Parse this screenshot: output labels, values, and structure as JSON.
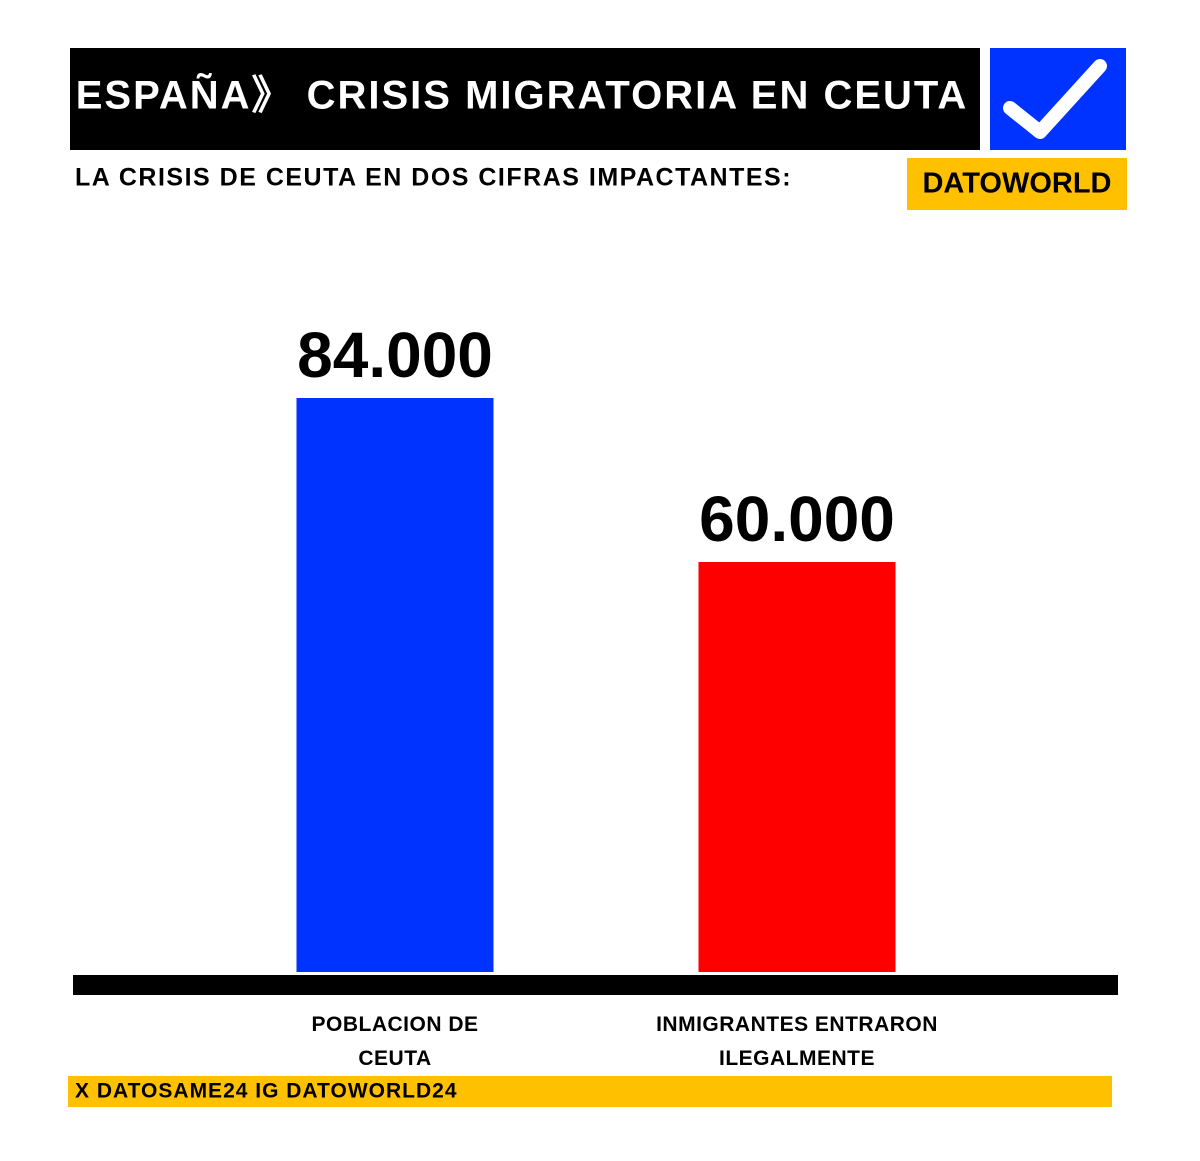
{
  "chart_data": {
    "type": "bar",
    "title": "ESPAÑA》 CRISIS MIGRATORIA EN CEUTA",
    "subtitle": "LA CRISIS DE CEUTA EN DOS CIFRAS IMPACTANTES:",
    "brand": "DATOWORLD",
    "footer": "X DATOSAME24 IG DATOWORLD24",
    "categories": [
      "POBLACION DE CEUTA",
      "INMIGRANTES ENTRARON ILEGALMENTE"
    ],
    "values": [
      84000,
      60000
    ],
    "value_labels": [
      "84.000",
      "60.000"
    ],
    "colors": [
      "#0033ff",
      "#ff0000"
    ]
  }
}
